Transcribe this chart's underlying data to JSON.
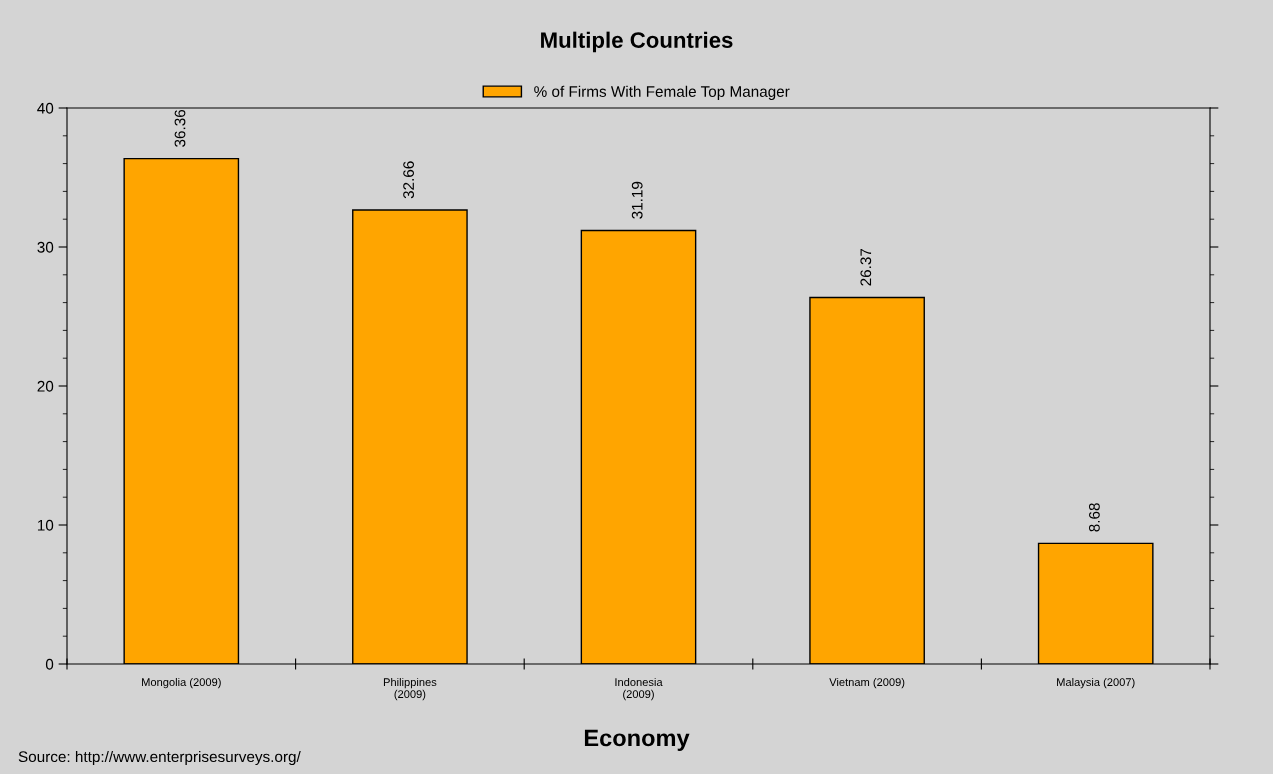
{
  "chart_data": {
    "type": "bar",
    "title": "Multiple Countries",
    "xlabel": "Economy",
    "categories": [
      "Mongolia (2009)",
      "Philippines\n(2009)",
      "Indonesia\n(2009)",
      "Vietnam (2009)",
      "Malaysia (2007)"
    ],
    "series": [
      {
        "name": "% of Firms With Female Top Manager",
        "color": "#ffa500",
        "values": [
          36.36,
          32.66,
          31.19,
          26.37,
          8.68
        ]
      }
    ],
    "data_labels": true,
    "ylim": [
      0,
      40
    ],
    "yticks": [
      0,
      10,
      20,
      30,
      40
    ],
    "grid": false,
    "legend": "top",
    "annotations": [
      "Source: http://www.enterprisesurveys.org/"
    ]
  }
}
